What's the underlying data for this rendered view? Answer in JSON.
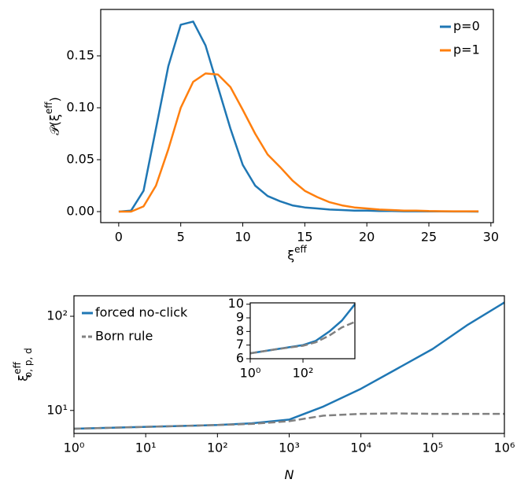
{
  "chart_data": [
    {
      "type": "line",
      "x": [
        0,
        1,
        2,
        3,
        4,
        5,
        6,
        7,
        8,
        9,
        10,
        11,
        12,
        13,
        14,
        15,
        16,
        17,
        18,
        19,
        20,
        21,
        22,
        23,
        24,
        25,
        26,
        27,
        28,
        29
      ],
      "series": [
        {
          "name": "p=0",
          "color": "#1f77b4",
          "values": [
            0,
            0.001,
            0.02,
            0.08,
            0.14,
            0.18,
            0.183,
            0.16,
            0.12,
            0.08,
            0.045,
            0.025,
            0.015,
            0.01,
            0.006,
            0.004,
            0.003,
            0.002,
            0.0015,
            0.001,
            0.001,
            0.0005,
            0.0005,
            0.0003,
            0.0003,
            0.0002,
            0.0002,
            0.0001,
            0.0001,
            0
          ]
        },
        {
          "name": "p=1",
          "color": "#ff7f0e",
          "values": [
            0,
            0,
            0.005,
            0.025,
            0.06,
            0.1,
            0.125,
            0.133,
            0.132,
            0.12,
            0.098,
            0.075,
            0.055,
            0.043,
            0.03,
            0.02,
            0.014,
            0.009,
            0.006,
            0.004,
            0.003,
            0.002,
            0.0015,
            0.001,
            0.001,
            0.0005,
            0.0004,
            0.0003,
            0.0003,
            0.0003
          ]
        }
      ],
      "xlim": [
        -1.45,
        30.2
      ],
      "ylim": [
        -0.0106,
        0.1947
      ],
      "xticks": [
        0,
        5,
        10,
        15,
        20,
        25,
        30
      ],
      "yticks": [
        {
          "value": 0,
          "label": "0.00"
        },
        {
          "value": 0.05,
          "label": "0.05"
        },
        {
          "value": 0.1,
          "label": "0.10"
        },
        {
          "value": 0.15,
          "label": "0.15"
        }
      ],
      "xlabel": [
        "ξ",
        "eff"
      ],
      "ylabel": [
        "𝒫(ξ",
        "eff",
        ")"
      ],
      "legend": "upper right"
    },
    {
      "type": "line",
      "xscale": "log",
      "yscale": "log",
      "x": [
        1,
        10,
        100,
        300,
        1000,
        3000,
        10000,
        30000,
        100000,
        300000,
        1000000
      ],
      "series": [
        {
          "name": "forced no-click",
          "color": "#1f77b4",
          "values": [
            6.4,
            6.7,
            7.0,
            7.3,
            8.0,
            11,
            17,
            27,
            45,
            80,
            140
          ]
        },
        {
          "name": "Born rule",
          "color": "#808080",
          "linestyle": "dashed",
          "values": [
            6.4,
            6.7,
            7.0,
            7.2,
            7.7,
            8.8,
            9.2,
            9.3,
            9.2,
            9.2,
            9.2
          ]
        }
      ],
      "xlim": [
        1,
        1000000
      ],
      "ylim": [
        5.7,
        165
      ],
      "xticks": [
        {
          "value": 1,
          "label": "10⁰"
        },
        {
          "value": 10,
          "label": "10¹"
        },
        {
          "value": 100,
          "label": "10²"
        },
        {
          "value": 1000,
          "label": "10³"
        },
        {
          "value": 10000,
          "label": "10⁴"
        },
        {
          "value": 100000,
          "label": "10⁵"
        },
        {
          "value": 1000000,
          "label": "10⁶"
        }
      ],
      "yticks": [
        {
          "value": 10,
          "label": "10¹"
        },
        {
          "value": 100,
          "label": "10²"
        }
      ],
      "xlabel": [
        "N"
      ],
      "ylabel": [
        "ξ",
        "eff",
        "o, p, d"
      ],
      "legend": "upper left"
    },
    {
      "type": "line",
      "xscale": "log",
      "x": [
        1,
        10,
        100,
        300,
        1000,
        3000,
        9300
      ],
      "series": [
        {
          "name": null,
          "color": "#1f77b4",
          "values": [
            6.4,
            6.7,
            7.0,
            7.3,
            8.0,
            8.8,
            10
          ]
        },
        {
          "name": null,
          "color": "#808080",
          "linestyle": "dashed",
          "values": [
            6.4,
            6.7,
            6.95,
            7.2,
            7.7,
            8.3,
            8.7
          ]
        }
      ],
      "xlim": [
        1,
        9300
      ],
      "ylim": [
        6,
        10.1
      ],
      "xticks": [
        {
          "value": 1,
          "label": "10⁰"
        },
        {
          "value": 100,
          "label": "10²"
        }
      ],
      "yticks": [
        6,
        7,
        8,
        9,
        10
      ]
    }
  ]
}
